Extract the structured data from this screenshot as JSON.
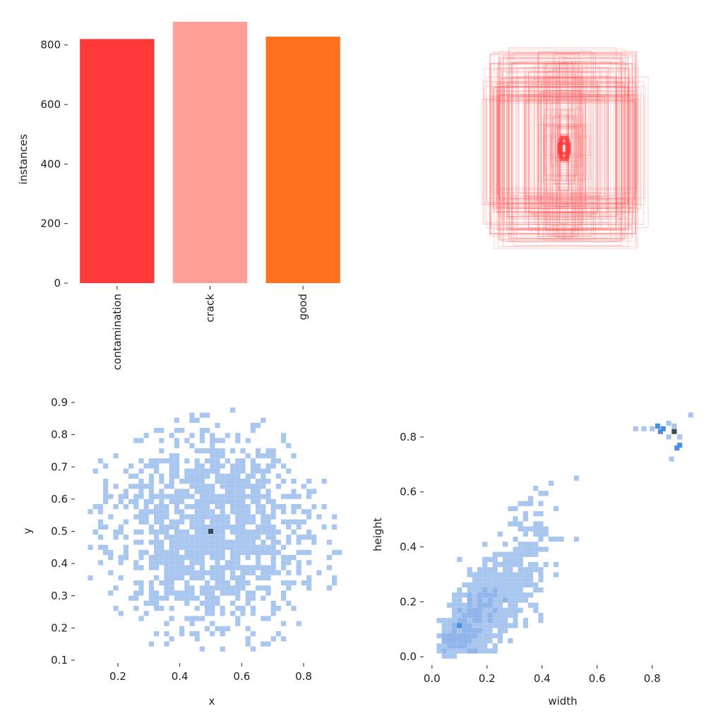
{
  "chart_data": [
    {
      "type": "bar",
      "panel": "class-counts",
      "ylabel": "instances",
      "ylim": [
        0,
        880
      ],
      "yticks": [
        0,
        200,
        400,
        600,
        800
      ],
      "categories": [
        "contamination",
        "crack",
        "good"
      ],
      "values": [
        820,
        878,
        828
      ],
      "colors": [
        "#ff3838",
        "#ff9d97",
        "#ff701f"
      ]
    },
    {
      "type": "heatmap",
      "panel": "box-overlay",
      "description_center": [
        0.5,
        0.5
      ],
      "color": "#ff3838"
    },
    {
      "type": "heatmap",
      "panel": "xy-histogram",
      "xlabel": "x",
      "ylabel": "y",
      "xlim": [
        0.07,
        0.93
      ],
      "ylim": [
        0.1,
        0.9
      ],
      "xticks": [
        0.2,
        0.4,
        0.6,
        0.8
      ],
      "xtick_labels": [
        "0.2",
        "0.4",
        "0.6",
        "0.8"
      ],
      "yticks": [
        0.1,
        0.2,
        0.3,
        0.4,
        0.5,
        0.6,
        0.7,
        0.8,
        0.9
      ],
      "ytick_labels": [
        "0.1",
        "0.2",
        "0.3",
        "0.4",
        "0.5",
        "0.6",
        "0.7",
        "0.8",
        "0.9"
      ],
      "peak": [
        0.5,
        0.5
      ],
      "cell_color": "#a8c6ee",
      "peak_color": "#3c4a5c"
    },
    {
      "type": "heatmap",
      "panel": "wh-histogram",
      "xlabel": "width",
      "ylabel": "height",
      "xlim": [
        -0.02,
        0.97
      ],
      "ylim": [
        -0.02,
        0.9
      ],
      "xticks": [
        0.0,
        0.2,
        0.4,
        0.6,
        0.8
      ],
      "xtick_labels": [
        "0.0",
        "0.2",
        "0.4",
        "0.6",
        "0.8"
      ],
      "yticks": [
        0.0,
        0.2,
        0.4,
        0.6,
        0.8
      ],
      "ytick_labels": [
        "0.0",
        "0.2",
        "0.4",
        "0.6",
        "0.8"
      ],
      "cell_color": "#a8c6ee",
      "dense_color": "#4a8fe0",
      "peak_color": "#3c4a5c"
    }
  ]
}
